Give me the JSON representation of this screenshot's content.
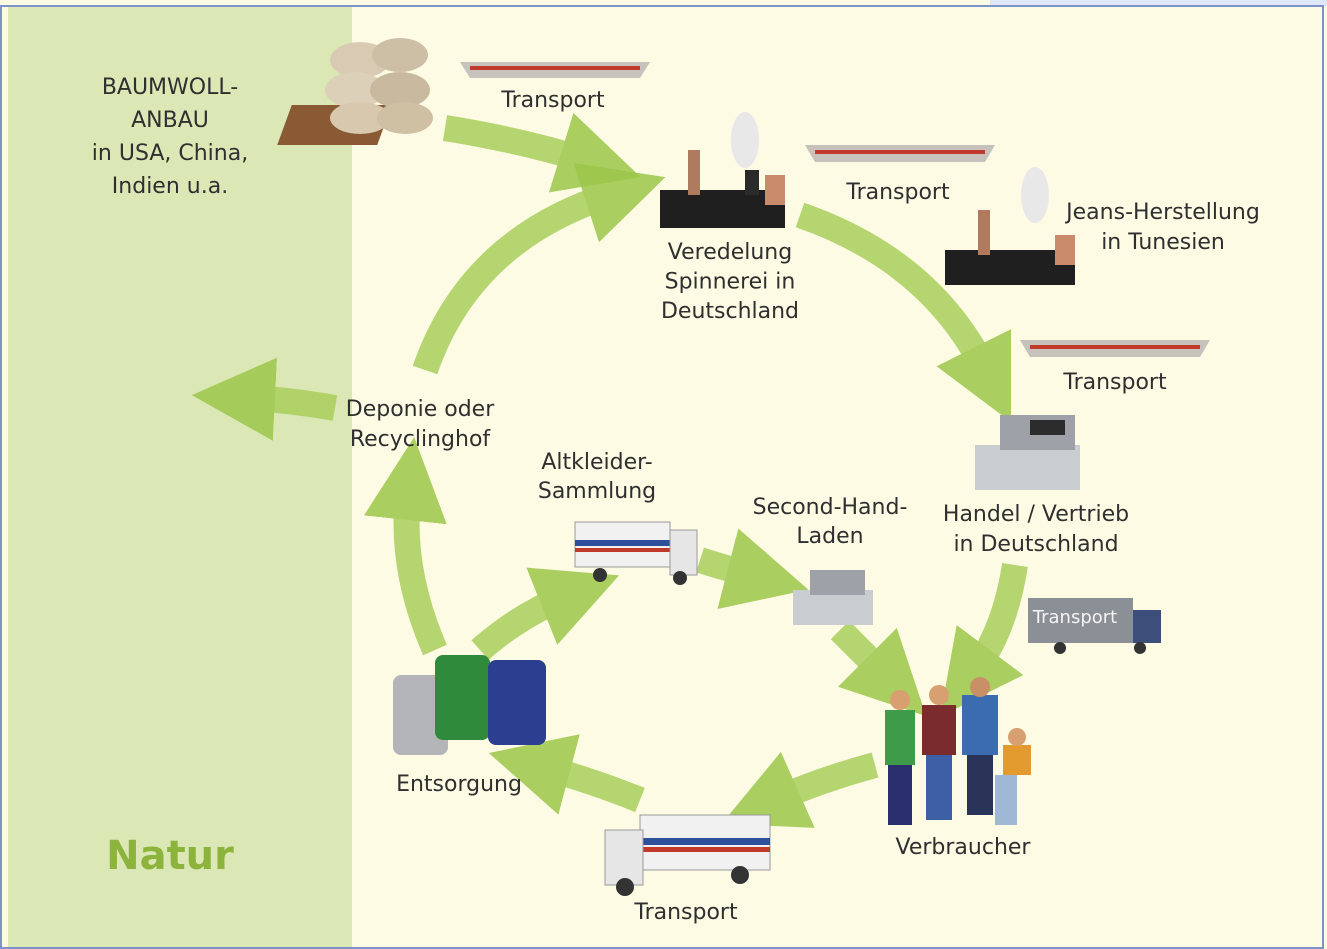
{
  "nodes": [
    {
      "lines": [
        "BAUMWOLL-",
        "ANBAU",
        "in USA, China,",
        "Indien u.a."
      ]
    },
    {
      "lines": [
        "Transport"
      ]
    },
    {
      "lines": [
        "Veredelung",
        "Spinnerei in",
        "Deutschland"
      ]
    },
    {
      "lines": [
        "Transport"
      ]
    },
    {
      "lines": [
        "Jeans-Herstellung",
        "in Tunesien"
      ]
    },
    {
      "lines": [
        "Transport"
      ]
    },
    {
      "lines": [
        "Handel / Vertrieb",
        "in Deutschland"
      ]
    },
    {
      "lines": [
        "Transport"
      ]
    },
    {
      "lines": [
        "Verbraucher"
      ]
    },
    {
      "lines": [
        "Transport"
      ]
    },
    {
      "lines": [
        "Entsorgung"
      ]
    },
    {
      "lines": [
        "Deponie oder",
        "Recyclinghof"
      ]
    },
    {
      "lines": [
        "Altkleider-",
        "Sammlung"
      ]
    },
    {
      "lines": [
        "Second-Hand-",
        "Laden"
      ]
    }
  ],
  "region": {
    "label": "Natur"
  }
}
